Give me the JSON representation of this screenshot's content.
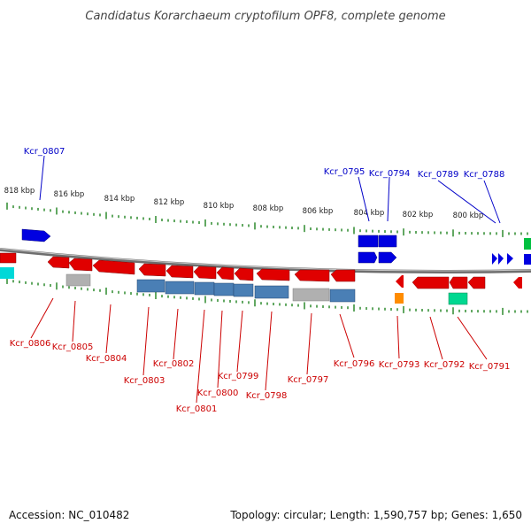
{
  "title": "Candidatus Korarchaeum cryptofilum OPF8, complete genome",
  "footer": {
    "accession": "Accession: NC_010482",
    "summary": "Topology: circular; Length: 1,590,757 bp; Genes: 1,650"
  },
  "colors": {
    "forward_label": "#0000c8",
    "reverse_label": "#cc0000",
    "backbone": "#808080",
    "tick": "#2e8b2e",
    "cds": "#e00000",
    "blue_cds": "#0000e0",
    "rna_blue": "#4a7fb5",
    "grey": "#b0b0b0",
    "cyan": "#00d8d8",
    "green": "#00c060",
    "orange": "#ff8c00"
  },
  "scale_labels": [
    "818 kbp",
    "816 kbp",
    "814 kbp",
    "812 kbp",
    "810 kbp",
    "808 kbp",
    "806 kbp",
    "804 kbp",
    "802 kbp",
    "800 kbp"
  ],
  "forward_genes": [
    "Kcr_0807",
    "Kcr_0795",
    "Kcr_0794",
    "Kcr_0789",
    "Kcr_0788"
  ],
  "reverse_genes": [
    "Kcr_0806",
    "Kcr_0805",
    "Kcr_0804",
    "Kcr_0803",
    "Kcr_0802",
    "Kcr_0801",
    "Kcr_0800",
    "Kcr_0799",
    "Kcr_0798",
    "Kcr_0797",
    "Kcr_0796",
    "Kcr_0793",
    "Kcr_0792",
    "Kcr_0791"
  ]
}
